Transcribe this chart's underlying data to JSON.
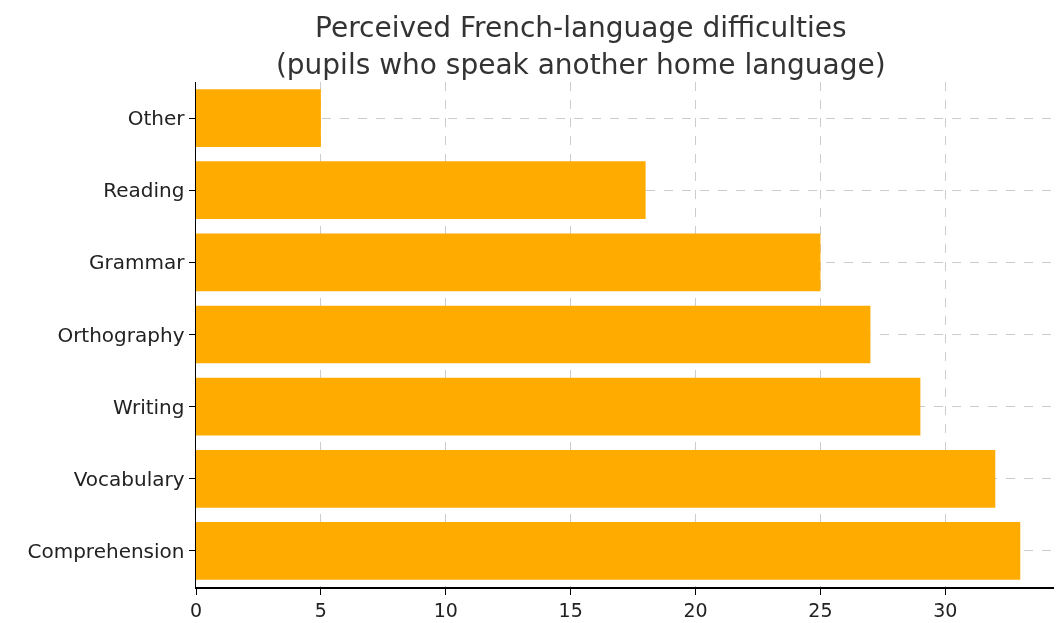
{
  "chart_data": {
    "type": "bar",
    "orientation": "horizontal",
    "title": "Perceived French-language difficulties\n(pupils who speak another home language)",
    "categories": [
      "Other",
      "Reading",
      "Grammar",
      "Orthography",
      "Writing",
      "Vocabulary",
      "Comprehension"
    ],
    "values": [
      5,
      18,
      25,
      27,
      29,
      32,
      33
    ],
    "color": "#ffab00",
    "xlim": [
      0,
      34.35
    ],
    "xticks": [
      0,
      5,
      10,
      15,
      20,
      25,
      30
    ],
    "grid": true
  }
}
